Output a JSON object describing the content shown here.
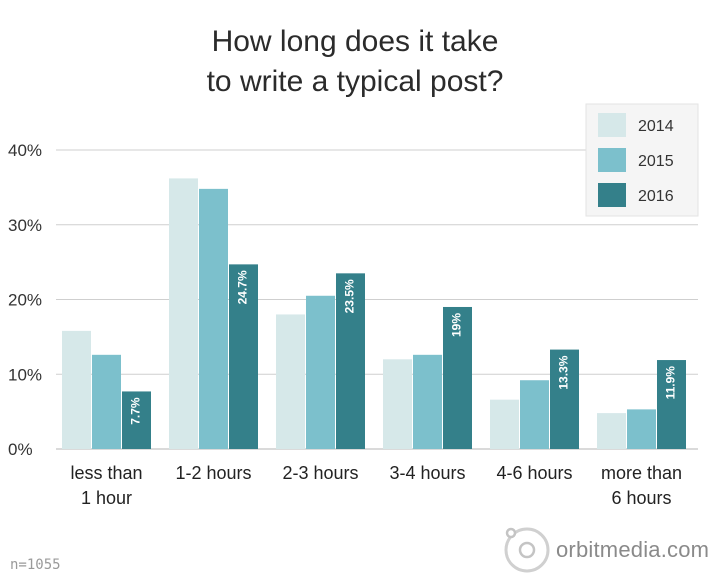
{
  "chart_data": {
    "type": "bar",
    "title_lines": [
      "How long does it take",
      "to write a typical post?"
    ],
    "categories": [
      [
        "less than",
        "1 hour"
      ],
      [
        "1-2 hours"
      ],
      [
        "2-3 hours"
      ],
      [
        "3-4 hours"
      ],
      [
        "4-6 hours"
      ],
      [
        "more than",
        "6 hours"
      ]
    ],
    "series": [
      {
        "name": "2014",
        "color": "#d6e8e9",
        "values": [
          15.8,
          36.2,
          18.0,
          12.0,
          6.6,
          4.8
        ]
      },
      {
        "name": "2015",
        "color": "#7cc0cc",
        "values": [
          12.6,
          34.8,
          20.5,
          12.6,
          9.2,
          5.3
        ]
      },
      {
        "name": "2016",
        "color": "#34808a",
        "values": [
          7.7,
          24.7,
          23.5,
          19,
          13.3,
          11.9
        ],
        "labels": [
          "7.7%",
          "24.7%",
          "23.5%",
          "19%",
          "13.3%",
          "11.9%"
        ]
      }
    ],
    "yticks": [
      {
        "value": 0,
        "label": "0%"
      },
      {
        "value": 10,
        "label": "10%"
      },
      {
        "value": 20,
        "label": "20%"
      },
      {
        "value": 30,
        "label": "30%"
      },
      {
        "value": 40,
        "label": "40%"
      }
    ],
    "ylim": [
      0,
      40
    ],
    "grid": true,
    "legend": "top-right"
  },
  "footer": {
    "sample_size": "n=1055",
    "brand": "orbitmedia.com"
  }
}
